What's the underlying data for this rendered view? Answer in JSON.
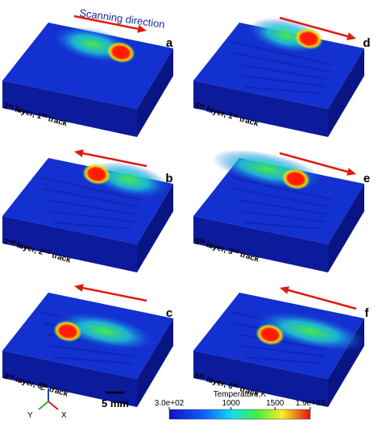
{
  "scanning_direction": "Scanning direction",
  "panels": [
    {
      "label": "a",
      "caption": [
        "1",
        "st",
        " layer, 1",
        "st",
        " track"
      ]
    },
    {
      "label": "d",
      "caption": [
        "5",
        "th",
        " layer, 1",
        "st",
        " track"
      ]
    },
    {
      "label": "b",
      "caption": [
        "2",
        "nd",
        " layer, 2",
        "nd",
        " track"
      ]
    },
    {
      "label": "e",
      "caption": [
        "5",
        "th",
        " layer, 3",
        "rd",
        " track"
      ]
    },
    {
      "label": "c",
      "caption": [
        "3",
        "rd",
        " layer, 6",
        "th",
        " track"
      ]
    },
    {
      "label": "f",
      "caption": [
        "5",
        "th",
        " layer, 6",
        "th",
        " track"
      ]
    }
  ],
  "axes": {
    "z": "Z",
    "y": "Y",
    "x": "X"
  },
  "scale_bar": "5 mm",
  "colorbar": {
    "title": "Temperature,K",
    "range": [
      300,
      1900
    ],
    "ticks": [
      {
        "value": 300,
        "label": "3.0e+02"
      },
      1000,
      1500,
      {
        "value": 1900,
        "label": "1.9e+03"
      }
    ]
  }
}
